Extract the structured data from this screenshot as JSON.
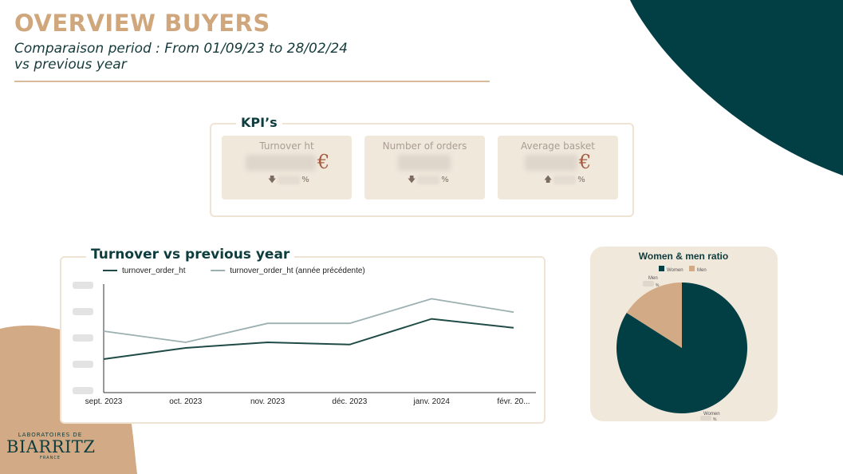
{
  "header": {
    "title": "OVERVIEW BUYERS",
    "subtitle_line1": "Comparaison period : From 01/09/23 to 28/02/24",
    "subtitle_line2": "vs previous year"
  },
  "colors": {
    "teal": "#023f45",
    "tan": "#d2aa85",
    "card": "#f1e8dc",
    "accent_brown": "#a45c42"
  },
  "kpis": {
    "title": "KPI’s",
    "cards": [
      {
        "label": "Turnover ht",
        "currency": "€",
        "delta_arrow": "down",
        "delta_unit": "%"
      },
      {
        "label": "Number of orders",
        "currency": "",
        "delta_arrow": "down",
        "delta_unit": "%"
      },
      {
        "label": "Average basket",
        "currency": "€",
        "delta_arrow": "up",
        "delta_unit": "%"
      }
    ]
  },
  "chart_data": [
    {
      "type": "line",
      "title": "Turnover vs previous year",
      "x": [
        "sept. 2023",
        "oct. 2023",
        "nov. 2023",
        "déc. 2023",
        "janv. 2024",
        "févr. 20..."
      ],
      "series": [
        {
          "name": "turnover_order_ht",
          "color": "#1f4b47",
          "values": [
            30,
            40,
            45,
            43,
            66,
            58
          ]
        },
        {
          "name": "turnover_order_ht (année précédente)",
          "color": "#9cb0b1",
          "values": [
            55,
            45,
            62,
            62,
            84,
            72
          ]
        }
      ],
      "ylim": [
        0,
        100
      ],
      "y_tick_labels_hidden": true,
      "legend": "top-left",
      "grid": false
    },
    {
      "type": "pie",
      "title": "Women & men ratio",
      "labels": [
        "Women",
        "Men"
      ],
      "values": [
        84,
        16
      ],
      "colors": [
        "#023f45",
        "#d2aa85"
      ],
      "legend": "top-left",
      "slice_label_unit": "%"
    }
  ],
  "logo": {
    "line1": "LABORATOIRES DE",
    "line2": "BIARRITZ",
    "line3": "FRANCE"
  }
}
